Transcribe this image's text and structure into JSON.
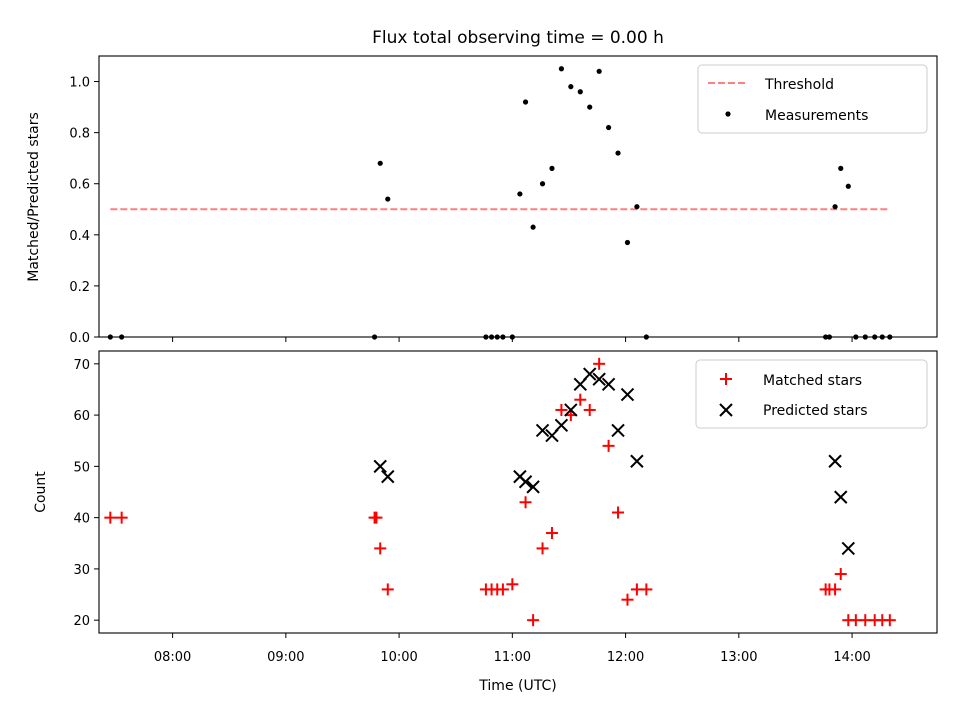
{
  "chart_data": [
    {
      "type": "scatter",
      "title": "Flux total observing time = 0.00 h",
      "xlabel": "",
      "ylabel": "Matched/Predicted stars",
      "ylim": [
        0,
        1.1
      ],
      "xlim": [
        "07:21",
        "14:45"
      ],
      "yticks": [
        "0.0",
        "0.2",
        "0.4",
        "0.6",
        "0.8",
        "1.0"
      ],
      "legend_position": "upper-right",
      "grid": false,
      "series": [
        {
          "name": "Threshold",
          "style": "dashed-line",
          "color": "#ff8080",
          "x": [
            "07:27",
            "14:20"
          ],
          "y": [
            0.5,
            0.5
          ]
        },
        {
          "name": "Measurements",
          "style": "dots",
          "color": "#000000",
          "x": [
            "07:27",
            "07:33",
            "09:47",
            "09:50",
            "09:54",
            "10:46",
            "10:49",
            "10:52",
            "10:55",
            "11:00",
            "11:04",
            "11:07",
            "11:11",
            "11:16",
            "11:21",
            "11:26",
            "11:31",
            "11:36",
            "11:41",
            "11:46",
            "11:51",
            "11:56",
            "12:01",
            "12:06",
            "12:11",
            "13:46",
            "13:48",
            "13:51",
            "13:54",
            "13:58",
            "14:02",
            "14:07",
            "14:12",
            "14:16",
            "14:20"
          ],
          "y": [
            0,
            0,
            0,
            0.68,
            0.54,
            0,
            0,
            0,
            0,
            0,
            0.56,
            0.92,
            0.43,
            0.6,
            0.66,
            1.05,
            0.98,
            0.96,
            0.9,
            1.04,
            0.82,
            0.72,
            0.37,
            0.51,
            0,
            0,
            0,
            0.51,
            0.66,
            0.59,
            0,
            0,
            0,
            0,
            0
          ]
        }
      ]
    },
    {
      "type": "scatter",
      "title": "",
      "xlabel": "Time (UTC)",
      "ylabel": "Count",
      "ylim": [
        17.5,
        72.5
      ],
      "xlim": [
        "07:21",
        "14:45"
      ],
      "yticks": [
        "20",
        "30",
        "40",
        "50",
        "60",
        "70"
      ],
      "xticks": [
        "08:00",
        "09:00",
        "10:00",
        "11:00",
        "12:00",
        "13:00",
        "14:00"
      ],
      "legend_position": "upper-right",
      "grid": false,
      "series": [
        {
          "name": "Matched stars",
          "style": "plus",
          "color": "#ff0000",
          "x": [
            "07:27",
            "07:33",
            "09:47",
            "09:48",
            "09:50",
            "09:54",
            "10:46",
            "10:49",
            "10:52",
            "10:55",
            "11:00",
            "11:07",
            "11:11",
            "11:16",
            "11:21",
            "11:26",
            "11:31",
            "11:36",
            "11:41",
            "11:46",
            "11:51",
            "11:56",
            "12:01",
            "12:06",
            "12:11",
            "13:46",
            "13:48",
            "13:51",
            "13:54",
            "13:58",
            "14:02",
            "14:07",
            "14:12",
            "14:16",
            "14:20"
          ],
          "y": [
            40,
            40,
            40,
            40,
            34,
            26,
            26,
            26,
            26,
            26,
            27,
            43,
            20,
            34,
            37,
            61,
            60,
            63,
            61,
            70,
            54,
            41,
            24,
            26,
            26,
            26,
            26,
            26,
            29,
            20,
            20,
            20,
            20,
            20,
            20
          ]
        },
        {
          "name": "Predicted stars",
          "style": "x",
          "color": "#000000",
          "x": [
            "09:50",
            "09:54",
            "11:04",
            "11:07",
            "11:11",
            "11:16",
            "11:21",
            "11:26",
            "11:31",
            "11:36",
            "11:41",
            "11:46",
            "11:51",
            "11:56",
            "12:01",
            "12:06",
            "13:51",
            "13:54",
            "13:58"
          ],
          "y": [
            50,
            48,
            48,
            47,
            46,
            57,
            56,
            58,
            61,
            66,
            68,
            67,
            66,
            57,
            64,
            51,
            51,
            44,
            34
          ]
        }
      ]
    }
  ]
}
